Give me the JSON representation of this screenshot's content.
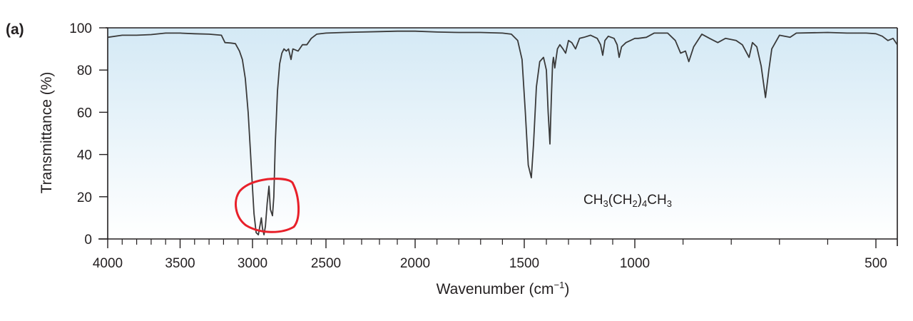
{
  "panel_label": "(a)",
  "chart_data": {
    "type": "line",
    "title": "",
    "xlabel": {
      "text": "Wavenumber (cm",
      "sup": "−1",
      "close": ")"
    },
    "ylabel": "Transmittance (%)",
    "xlim": [
      4000,
      450
    ],
    "ylim": [
      0,
      100
    ],
    "x_ticks": [
      4000,
      3500,
      3000,
      2500,
      2000,
      1500,
      1000,
      500
    ],
    "y_ticks": [
      0,
      20,
      40,
      60,
      80,
      100
    ],
    "grid": false,
    "annotation": {
      "parts": [
        "CH",
        "3",
        "(CH",
        "2",
        ")",
        "4",
        "CH",
        "3"
      ],
      "text": "CH3(CH2)4CH3"
    },
    "highlight": {
      "shape": "hand-drawn circle",
      "color": "#e8202a",
      "around_x": [
        3000,
        2840
      ],
      "around_y": [
        2,
        27
      ]
    },
    "series": [
      {
        "name": "CH3(CH2)4CH3",
        "color": "#3a3a3a",
        "points": [
          [
            4000,
            95.5
          ],
          [
            3900,
            96.5
          ],
          [
            3800,
            96.5
          ],
          [
            3700,
            96.8
          ],
          [
            3600,
            97.5
          ],
          [
            3500,
            97.5
          ],
          [
            3400,
            97.2
          ],
          [
            3300,
            97
          ],
          [
            3215,
            96.5
          ],
          [
            3190,
            93
          ],
          [
            3150,
            92.8
          ],
          [
            3118,
            92.5
          ],
          [
            3090,
            89
          ],
          [
            3070,
            85
          ],
          [
            3050,
            76
          ],
          [
            3030,
            60
          ],
          [
            3015,
            42
          ],
          [
            3005,
            30
          ],
          [
            2990,
            12
          ],
          [
            2975,
            3
          ],
          [
            2960,
            2
          ],
          [
            2950,
            6
          ],
          [
            2940,
            10
          ],
          [
            2932,
            5
          ],
          [
            2922,
            2
          ],
          [
            2912,
            6
          ],
          [
            2900,
            17
          ],
          [
            2888,
            25
          ],
          [
            2878,
            14
          ],
          [
            2864,
            11
          ],
          [
            2855,
            20
          ],
          [
            2845,
            45
          ],
          [
            2830,
            70
          ],
          [
            2815,
            83
          ],
          [
            2800,
            88
          ],
          [
            2786,
            90
          ],
          [
            2770,
            89
          ],
          [
            2755,
            90
          ],
          [
            2738,
            85
          ],
          [
            2725,
            90
          ],
          [
            2690,
            89
          ],
          [
            2660,
            92
          ],
          [
            2630,
            92
          ],
          [
            2600,
            95
          ],
          [
            2563,
            97
          ],
          [
            2500,
            97.5
          ],
          [
            2400,
            97.8
          ],
          [
            2300,
            98
          ],
          [
            2200,
            98.2
          ],
          [
            2100,
            98.4
          ],
          [
            2000,
            98.4
          ],
          [
            1900,
            98
          ],
          [
            1800,
            97.8
          ],
          [
            1700,
            97.8
          ],
          [
            1600,
            97.5
          ],
          [
            1559,
            97
          ],
          [
            1530,
            94
          ],
          [
            1510,
            85
          ],
          [
            1495,
            60
          ],
          [
            1482,
            35
          ],
          [
            1468,
            29
          ],
          [
            1458,
            45
          ],
          [
            1445,
            72
          ],
          [
            1430,
            84
          ],
          [
            1413,
            86
          ],
          [
            1400,
            80
          ],
          [
            1392,
            60
          ],
          [
            1384,
            45
          ],
          [
            1378,
            65
          ],
          [
            1372,
            83
          ],
          [
            1368,
            86
          ],
          [
            1362,
            81
          ],
          [
            1350,
            90
          ],
          [
            1339,
            92
          ],
          [
            1325,
            90
          ],
          [
            1313,
            88
          ],
          [
            1300,
            94
          ],
          [
            1285,
            93
          ],
          [
            1268,
            90
          ],
          [
            1250,
            95
          ],
          [
            1230,
            95.5
          ],
          [
            1200,
            96.5
          ],
          [
            1170,
            95
          ],
          [
            1155,
            92
          ],
          [
            1145,
            87
          ],
          [
            1135,
            94
          ],
          [
            1120,
            96
          ],
          [
            1094,
            95
          ],
          [
            1080,
            92
          ],
          [
            1071,
            86
          ],
          [
            1060,
            91
          ],
          [
            1040,
            93
          ],
          [
            1020,
            94
          ],
          [
            1000,
            95
          ],
          [
            993,
            95
          ],
          [
            976,
            95.5
          ],
          [
            960,
            97.5
          ],
          [
            932,
            97.5
          ],
          [
            916,
            94
          ],
          [
            905,
            88
          ],
          [
            895,
            89
          ],
          [
            888,
            84
          ],
          [
            878,
            91
          ],
          [
            861,
            97
          ],
          [
            845,
            95
          ],
          [
            828,
            93
          ],
          [
            812,
            95
          ],
          [
            790,
            94
          ],
          [
            777,
            92
          ],
          [
            763,
            86
          ],
          [
            756,
            93
          ],
          [
            747,
            91
          ],
          [
            738,
            82
          ],
          [
            729,
            67
          ],
          [
            722,
            80
          ],
          [
            716,
            90
          ],
          [
            700,
            96.5
          ],
          [
            678,
            95.5
          ],
          [
            665,
            97.5
          ],
          [
            600,
            97.8
          ],
          [
            560,
            97.5
          ],
          [
            520,
            97.5
          ],
          [
            500,
            97.2
          ],
          [
            485,
            96
          ],
          [
            472,
            94
          ],
          [
            460,
            95
          ],
          [
            450,
            92
          ]
        ]
      }
    ]
  },
  "colors": {
    "plot_top": "#d4e9f5",
    "plot_bottom": "#ffffff",
    "axis": "#231f20",
    "highlight": "#e8202a"
  }
}
